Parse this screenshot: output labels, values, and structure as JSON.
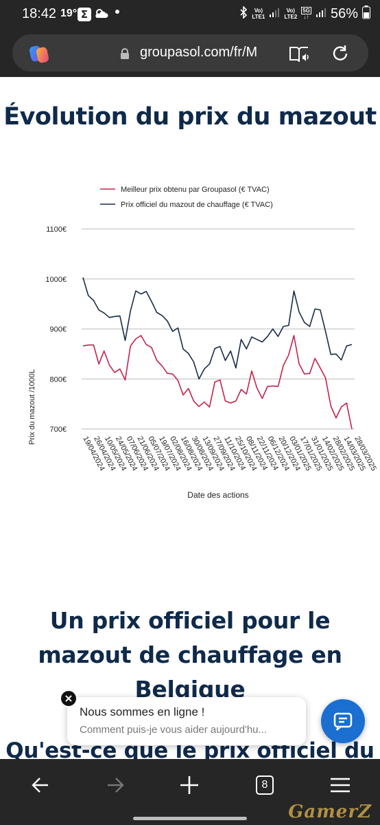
{
  "status_bar": {
    "time": "18:42",
    "temperature": "19°",
    "notification_app_icon": "sigma-icon",
    "weather_icon": "cloud-icon",
    "network_1_top": "Vo)",
    "network_1_bottom": "LTE1",
    "network_2_top": "Vo)",
    "network_2_bottom": "LTE2",
    "network_5g": "5G",
    "battery": "56%"
  },
  "browser": {
    "url": "groupasol.com/fr/M",
    "tab_count": "8"
  },
  "page": {
    "title": "Évolution du prix du mazout",
    "section_heading": "Un prix officiel pour le mazout de chauffage en Belgique",
    "section_heading_2": "Qu'est-ce que le prix officiel du"
  },
  "chat": {
    "title": "Nous sommes en ligne !",
    "subtitle": "Comment puis-je vous aider aujourd'hu..."
  },
  "watermark": "GamerZ",
  "colors": {
    "series_best": "#c4214a",
    "series_official": "#1a2b45",
    "heading": "#0f2a4a",
    "chat_button": "#1a6fd0"
  },
  "chart_data": {
    "type": "line",
    "xlabel": "Date des actions",
    "ylabel": "Prix du mazout /1000L",
    "ylim": [
      700,
      1100
    ],
    "yticks": [
      "1100€",
      "1000€",
      "900€",
      "800€",
      "700€"
    ],
    "grid": true,
    "legend_position": "top",
    "x_tick_labels": [
      "19/04/2024",
      "26/04/2024",
      "10/05/2024",
      "24/05/2024",
      "07/06/2024",
      "21/06/2024",
      "05/07/2024",
      "19/07/2024",
      "02/08/2024",
      "16/08/2024",
      "30/08/2024",
      "13/09/2024",
      "27/09/2024",
      "11/10/2024",
      "25/10/2024",
      "08/11/2024",
      "22/11/2024",
      "06/12/2024",
      "20/12/2024",
      "03/01/2025",
      "17/01/2025",
      "31/01/2025",
      "14/02/2025",
      "28/02/2025",
      "14/03/2025",
      "28/03/2025"
    ],
    "series": [
      {
        "name": "Meilleur prix obtenu par Groupasol (€ TVAC)",
        "color": "#c4214a",
        "values": [
          866,
          868,
          868,
          830,
          856,
          828,
          813,
          820,
          798,
          866,
          880,
          887,
          869,
          863,
          837,
          826,
          811,
          810,
          797,
          768,
          781,
          756,
          745,
          754,
          744,
          794,
          798,
          756,
          752,
          756,
          779,
          770,
          816,
          782,
          761,
          785,
          786,
          785,
          827,
          848,
          887,
          830,
          810,
          811,
          841,
          822,
          802,
          746,
          722,
          744,
          752,
          700
        ]
      },
      {
        "name": "Prix officiel du mazout de chauffage (€ TVAC)",
        "color": "#1a2b45",
        "values": [
          1003,
          967,
          957,
          938,
          932,
          923,
          925,
          926,
          877,
          936,
          976,
          970,
          975,
          955,
          933,
          927,
          916,
          895,
          902,
          860,
          851,
          834,
          800,
          820,
          830,
          861,
          865,
          837,
          856,
          822,
          879,
          860,
          884,
          879,
          874,
          885,
          900,
          885,
          905,
          907,
          976,
          934,
          913,
          905,
          940,
          938,
          895,
          849,
          850,
          838,
          866,
          869
        ]
      }
    ]
  }
}
